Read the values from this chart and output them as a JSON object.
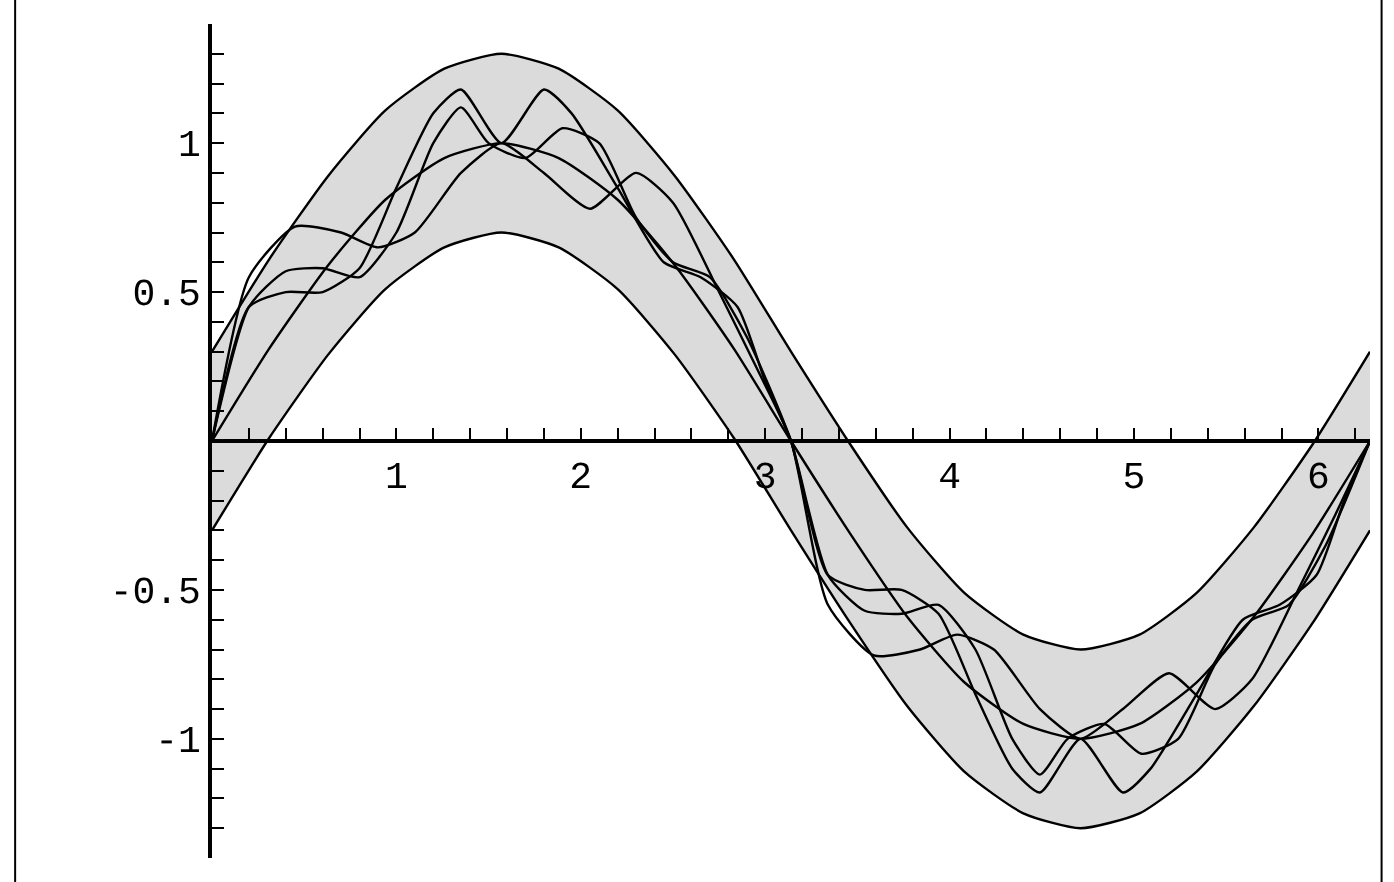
{
  "chart_data": {
    "type": "line",
    "xlim": [
      0,
      6.28
    ],
    "ylim": [
      -1.4,
      1.4
    ],
    "xticks": [
      {
        "value": 0.2,
        "label": null
      },
      {
        "value": 0.4,
        "label": null
      },
      {
        "value": 0.6,
        "label": null
      },
      {
        "value": 0.8,
        "label": null
      },
      1,
      {
        "value": 1.2,
        "label": null
      },
      {
        "value": 1.4,
        "label": null
      },
      {
        "value": 1.6,
        "label": null
      },
      {
        "value": 1.8,
        "label": null
      },
      2,
      {
        "value": 2.2,
        "label": null
      },
      {
        "value": 2.4,
        "label": null
      },
      {
        "value": 2.6,
        "label": null
      },
      {
        "value": 2.8,
        "label": null
      },
      3,
      {
        "value": 3.2,
        "label": null
      },
      {
        "value": 3.4,
        "label": null
      },
      {
        "value": 3.6,
        "label": null
      },
      {
        "value": 3.8,
        "label": null
      },
      4,
      {
        "value": 4.2,
        "label": null
      },
      {
        "value": 4.4,
        "label": null
      },
      {
        "value": 4.6,
        "label": null
      },
      {
        "value": 4.8,
        "label": null
      },
      5,
      {
        "value": 5.2,
        "label": null
      },
      {
        "value": 5.4,
        "label": null
      },
      {
        "value": 5.6,
        "label": null
      },
      {
        "value": 5.8,
        "label": null
      },
      6,
      {
        "value": 6.2,
        "label": null
      }
    ],
    "yticks": [
      {
        "value": -1.3,
        "label": null
      },
      {
        "value": -1.2,
        "label": null
      },
      {
        "value": -1.1,
        "label": null
      },
      -1,
      {
        "value": -0.9,
        "label": null
      },
      {
        "value": -0.8,
        "label": null
      },
      {
        "value": -0.7,
        "label": null
      },
      {
        "value": -0.6,
        "label": null
      },
      -0.5,
      {
        "value": -0.4,
        "label": null
      },
      {
        "value": -0.3,
        "label": null
      },
      {
        "value": -0.2,
        "label": null
      },
      {
        "value": -0.1,
        "label": null
      },
      {
        "value": 0.1,
        "label": null
      },
      {
        "value": 0.2,
        "label": null
      },
      {
        "value": 0.3,
        "label": null
      },
      {
        "value": 0.4,
        "label": null
      },
      0.5,
      {
        "value": 0.6,
        "label": null
      },
      {
        "value": 0.7,
        "label": null
      },
      {
        "value": 0.8,
        "label": null
      },
      {
        "value": 0.9,
        "label": null
      },
      1,
      {
        "value": 1.1,
        "label": null
      },
      {
        "value": 1.2,
        "label": null
      },
      {
        "value": 1.3,
        "label": null
      }
    ],
    "grid": false,
    "marker": "none",
    "line_style": "solid",
    "series": [
      {
        "color": "#000000",
        "x": [
          0,
          0.31,
          0.63,
          0.94,
          1.26,
          1.57,
          1.88,
          2.2,
          2.51,
          2.83,
          3.14,
          3.46,
          3.77,
          4.08,
          4.4,
          4.71,
          5.03,
          5.34,
          5.65,
          5.97,
          6.28
        ],
        "values": [
          -0.3,
          0.01,
          0.29,
          0.51,
          0.65,
          0.7,
          0.65,
          0.51,
          0.29,
          0.01,
          -0.3,
          -0.61,
          -0.89,
          -1.11,
          -1.25,
          -1.3,
          -1.25,
          -1.11,
          -0.89,
          -0.61,
          -0.3
        ]
      },
      {
        "color": "#000000",
        "x": [
          0,
          0.31,
          0.63,
          0.94,
          1.26,
          1.57,
          1.88,
          2.2,
          2.51,
          2.83,
          3.14,
          3.46,
          3.77,
          4.08,
          4.4,
          4.71,
          5.03,
          5.34,
          5.65,
          5.97,
          6.28
        ],
        "values": [
          0.3,
          0.61,
          0.89,
          1.11,
          1.25,
          1.3,
          1.25,
          1.11,
          0.89,
          0.61,
          0.3,
          -0.01,
          -0.29,
          -0.51,
          -0.65,
          -0.7,
          -0.65,
          -0.51,
          -0.29,
          -0.01,
          0.3
        ]
      },
      {
        "color": "#000000",
        "x": [
          0,
          0.31,
          0.63,
          0.94,
          1.26,
          1.57,
          1.88,
          2.2,
          2.51,
          2.83,
          3.14,
          3.46,
          3.77,
          4.08,
          4.4,
          4.71,
          5.03,
          5.34,
          5.65,
          5.97,
          6.28
        ],
        "values": [
          0,
          0.31,
          0.59,
          0.81,
          0.95,
          1,
          0.95,
          0.81,
          0.59,
          0.31,
          0,
          -0.31,
          -0.59,
          -0.81,
          -0.95,
          -1,
          -0.95,
          -0.81,
          -0.59,
          -0.31,
          0
        ],
        "lower": [
          -0.3,
          0.01,
          0.29,
          0.51,
          0.65,
          0.7,
          0.65,
          0.51,
          0.29,
          0.01,
          -0.3,
          -0.61,
          -0.89,
          -1.11,
          -1.25,
          -1.3,
          -1.25,
          -1.11,
          -0.89,
          -0.61,
          -0.3
        ],
        "upper": [
          0.3,
          0.61,
          0.89,
          1.11,
          1.25,
          1.3,
          1.25,
          1.11,
          0.89,
          0.61,
          0.3,
          -0.01,
          -0.29,
          -0.51,
          -0.65,
          -0.7,
          -0.65,
          -0.51,
          -0.29,
          -0.01,
          0.3
        ]
      },
      {
        "color": "#000000",
        "x": [
          0,
          0.2,
          0.4,
          0.6,
          0.8,
          1.0,
          1.2,
          1.35,
          1.57,
          1.8,
          1.95,
          2.2,
          2.45,
          2.65,
          2.85,
          3.0,
          3.14,
          3.34,
          3.54,
          3.74,
          3.94,
          4.14,
          4.34,
          4.49,
          4.71,
          4.94,
          5.09,
          5.34,
          5.59,
          5.79,
          5.99,
          6.14,
          6.28
        ],
        "values": [
          0,
          0.45,
          0.5,
          0.5,
          0.58,
          0.85,
          1.1,
          1.18,
          1.0,
          1.18,
          1.1,
          0.85,
          0.6,
          0.55,
          0.45,
          0.2,
          0,
          -0.45,
          -0.5,
          -0.5,
          -0.58,
          -0.85,
          -1.1,
          -1.18,
          -1.0,
          -1.18,
          -1.1,
          -0.85,
          -0.6,
          -0.55,
          -0.45,
          -0.2,
          0
        ]
      },
      {
        "color": "#000000",
        "x": [
          0,
          0.2,
          0.4,
          0.6,
          0.8,
          1.0,
          1.2,
          1.35,
          1.5,
          1.7,
          1.9,
          2.1,
          2.3,
          2.5,
          2.7,
          2.9,
          3.14,
          3.34,
          3.54,
          3.74,
          3.94,
          4.14,
          4.34,
          4.49,
          4.64,
          4.84,
          5.04,
          5.24,
          5.44,
          5.64,
          5.84,
          6.04,
          6.28
        ],
        "values": [
          0,
          0.45,
          0.57,
          0.58,
          0.55,
          0.7,
          1.0,
          1.12,
          1.0,
          0.95,
          1.05,
          1.0,
          0.75,
          0.6,
          0.55,
          0.35,
          0,
          -0.45,
          -0.57,
          -0.58,
          -0.55,
          -0.7,
          -1.0,
          -1.12,
          -1.0,
          -0.95,
          -1.05,
          -1.0,
          -0.75,
          -0.6,
          -0.55,
          -0.35,
          0
        ]
      },
      {
        "color": "#000000",
        "x": [
          0,
          0.2,
          0.45,
          0.7,
          0.9,
          1.1,
          1.35,
          1.57,
          1.8,
          2.05,
          2.3,
          2.5,
          2.75,
          2.95,
          3.14,
          3.34,
          3.59,
          3.84,
          4.04,
          4.24,
          4.49,
          4.71,
          4.94,
          5.19,
          5.44,
          5.64,
          5.89,
          6.09,
          6.28
        ],
        "values": [
          0,
          0.55,
          0.72,
          0.7,
          0.65,
          0.7,
          0.9,
          1.0,
          0.9,
          0.78,
          0.9,
          0.8,
          0.5,
          0.25,
          0,
          -0.55,
          -0.72,
          -0.7,
          -0.65,
          -0.7,
          -0.9,
          -1.0,
          -0.9,
          -0.78,
          -0.9,
          -0.8,
          -0.5,
          -0.25,
          0
        ]
      }
    ]
  }
}
